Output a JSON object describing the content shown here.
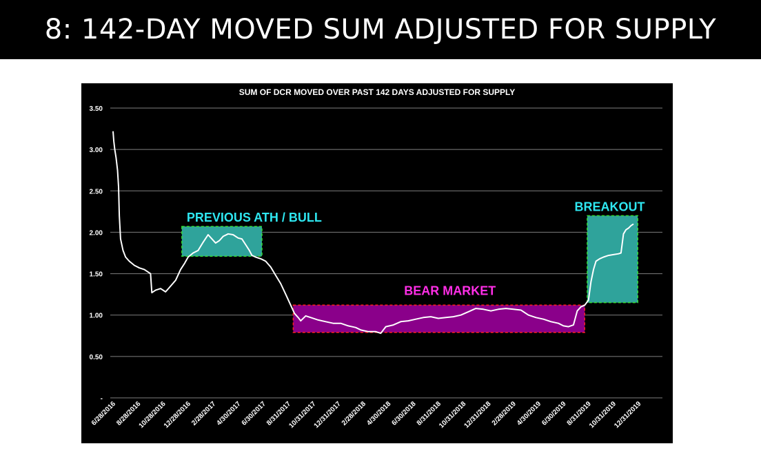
{
  "slide": {
    "title": "8: 142-DAY MOVED SUM ADJUSTED FOR SUPPLY"
  },
  "chart_data": {
    "type": "line",
    "title": "SUM OF DCR MOVED OVER PAST 142 DAYS ADJUSTED FOR SUPPLY",
    "xlabel": "",
    "ylabel": "",
    "ylim": [
      0,
      3.5
    ],
    "y_ticks": [
      {
        "value": 0,
        "label": "-"
      },
      {
        "value": 0.5,
        "label": "0.50"
      },
      {
        "value": 1.0,
        "label": "1.00"
      },
      {
        "value": 1.5,
        "label": "1.50"
      },
      {
        "value": 2.0,
        "label": "2.00"
      },
      {
        "value": 2.5,
        "label": "2.50"
      },
      {
        "value": 3.0,
        "label": "3.00"
      },
      {
        "value": 3.5,
        "label": "3.50"
      }
    ],
    "x_ticks": [
      "6/28/2016",
      "8/28/2016",
      "10/28/2016",
      "12/28/2016",
      "2/28/2017",
      "4/30/2017",
      "6/30/2017",
      "8/31/2017",
      "10/31/2017",
      "12/31/2017",
      "2/28/2018",
      "4/30/2018",
      "6/30/2018",
      "8/31/2018",
      "10/31/2018",
      "12/31/2018",
      "2/28/2019",
      "4/30/2019",
      "6/30/2019",
      "8/31/2019",
      "10/31/2019",
      "12/31/2019"
    ],
    "grid": true,
    "colors": {
      "background": "#000000",
      "line": "#ffffff",
      "grid": "#7f7f7f",
      "text": "#ffffff",
      "bull_fill": "#2fa39b",
      "bull_border": "#33dd33",
      "bull_label": "#2ee6f0",
      "bear_fill": "#8a008a",
      "bear_border": "#ff2020",
      "bear_label": "#ff2ee6",
      "line_in_bull": "#cfeff0",
      "line_in_bear": "#f0c8f0"
    },
    "series": [
      {
        "points": [
          [
            0,
            3.22
          ],
          [
            0.03,
            3.1
          ],
          [
            0.07,
            3.0
          ],
          [
            0.12,
            2.9
          ],
          [
            0.18,
            2.75
          ],
          [
            0.22,
            2.55
          ],
          [
            0.25,
            2.2
          ],
          [
            0.3,
            1.92
          ],
          [
            0.4,
            1.78
          ],
          [
            0.5,
            1.7
          ],
          [
            0.65,
            1.65
          ],
          [
            0.85,
            1.6
          ],
          [
            1.05,
            1.57
          ],
          [
            1.25,
            1.55
          ],
          [
            1.4,
            1.52
          ],
          [
            1.5,
            1.5
          ],
          [
            1.55,
            1.27
          ],
          [
            1.7,
            1.3
          ],
          [
            1.9,
            1.32
          ],
          [
            2.1,
            1.28
          ],
          [
            2.3,
            1.35
          ],
          [
            2.5,
            1.42
          ],
          [
            2.7,
            1.55
          ],
          [
            2.85,
            1.62
          ],
          [
            3.0,
            1.7
          ],
          [
            3.2,
            1.75
          ],
          [
            3.4,
            1.78
          ],
          [
            3.6,
            1.88
          ],
          [
            3.8,
            1.97
          ],
          [
            3.95,
            1.92
          ],
          [
            4.1,
            1.87
          ],
          [
            4.25,
            1.9
          ],
          [
            4.4,
            1.95
          ],
          [
            4.6,
            1.98
          ],
          [
            4.8,
            1.97
          ],
          [
            5.0,
            1.93
          ],
          [
            5.15,
            1.92
          ],
          [
            5.3,
            1.85
          ],
          [
            5.45,
            1.78
          ],
          [
            5.55,
            1.72
          ],
          [
            5.7,
            1.7
          ],
          [
            5.9,
            1.68
          ],
          [
            6.1,
            1.65
          ],
          [
            6.3,
            1.58
          ],
          [
            6.5,
            1.48
          ],
          [
            6.7,
            1.38
          ],
          [
            6.9,
            1.25
          ],
          [
            7.1,
            1.12
          ],
          [
            7.25,
            1.02
          ],
          [
            7.4,
            0.97
          ],
          [
            7.5,
            0.93
          ],
          [
            7.7,
            0.99
          ],
          [
            7.9,
            0.97
          ],
          [
            8.2,
            0.94
          ],
          [
            8.5,
            0.92
          ],
          [
            8.8,
            0.9
          ],
          [
            9.1,
            0.9
          ],
          [
            9.4,
            0.87
          ],
          [
            9.7,
            0.85
          ],
          [
            9.9,
            0.82
          ],
          [
            10.2,
            0.8
          ],
          [
            10.5,
            0.8
          ],
          [
            10.7,
            0.78
          ],
          [
            10.9,
            0.86
          ],
          [
            11.2,
            0.88
          ],
          [
            11.5,
            0.92
          ],
          [
            11.8,
            0.93
          ],
          [
            12.1,
            0.95
          ],
          [
            12.4,
            0.97
          ],
          [
            12.7,
            0.98
          ],
          [
            13.0,
            0.96
          ],
          [
            13.3,
            0.97
          ],
          [
            13.6,
            0.98
          ],
          [
            13.9,
            1.0
          ],
          [
            14.2,
            1.04
          ],
          [
            14.5,
            1.08
          ],
          [
            14.8,
            1.07
          ],
          [
            15.1,
            1.05
          ],
          [
            15.4,
            1.07
          ],
          [
            15.7,
            1.08
          ],
          [
            16.0,
            1.07
          ],
          [
            16.3,
            1.06
          ],
          [
            16.6,
            1.0
          ],
          [
            16.9,
            0.97
          ],
          [
            17.2,
            0.95
          ],
          [
            17.5,
            0.92
          ],
          [
            17.8,
            0.9
          ],
          [
            18.0,
            0.87
          ],
          [
            18.2,
            0.86
          ],
          [
            18.4,
            0.88
          ],
          [
            18.55,
            1.05
          ],
          [
            18.7,
            1.1
          ],
          [
            18.85,
            1.12
          ],
          [
            19.0,
            1.18
          ],
          [
            19.1,
            1.4
          ],
          [
            19.2,
            1.55
          ],
          [
            19.3,
            1.65
          ],
          [
            19.45,
            1.68
          ],
          [
            19.6,
            1.7
          ],
          [
            19.8,
            1.72
          ],
          [
            20.0,
            1.73
          ],
          [
            20.2,
            1.74
          ],
          [
            20.3,
            1.75
          ],
          [
            20.4,
            1.98
          ],
          [
            20.5,
            2.03
          ],
          [
            20.6,
            2.05
          ],
          [
            20.7,
            2.08
          ],
          [
            20.8,
            2.1
          ]
        ]
      }
    ],
    "annotations": [
      {
        "label": "PREVIOUS ATH / BULL",
        "style": "bull",
        "x_from": 2.75,
        "x_to": 5.95,
        "y_from": 1.71,
        "y_to": 2.07
      },
      {
        "label": "BEAR MARKET",
        "style": "bear",
        "x_from": 7.2,
        "x_to": 18.85,
        "y_from": 0.79,
        "y_to": 1.12
      },
      {
        "label": "BREAKOUT",
        "style": "bull",
        "x_from": 18.95,
        "x_to": 20.97,
        "y_from": 1.15,
        "y_to": 2.2
      }
    ]
  }
}
